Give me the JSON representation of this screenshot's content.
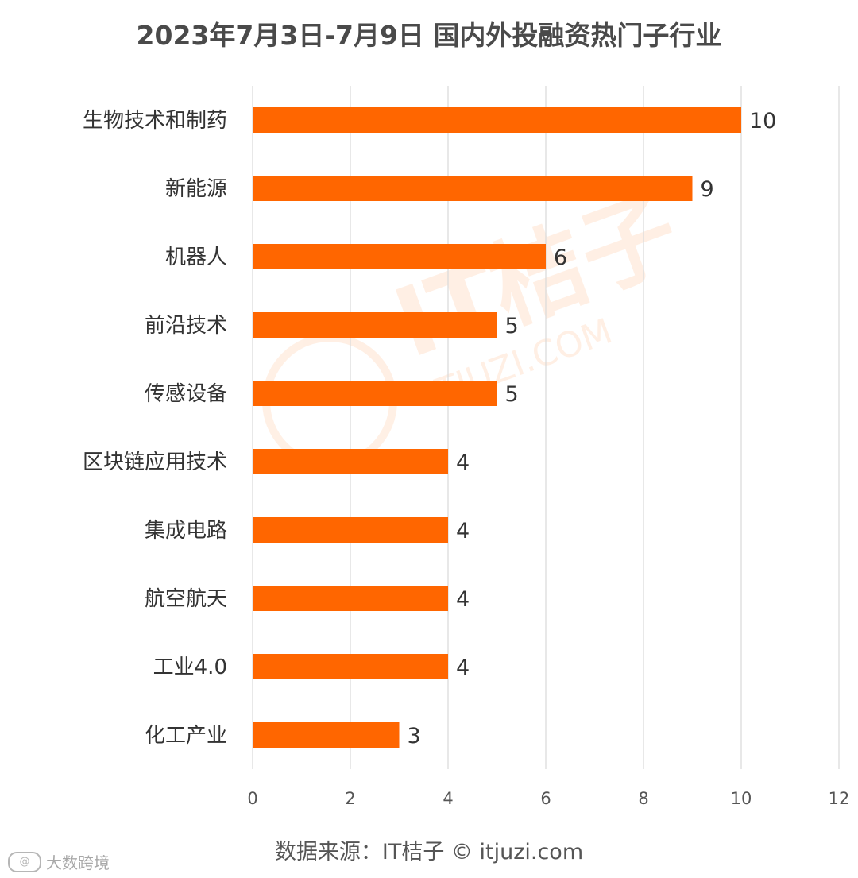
{
  "header": {
    "title": "2023年7月3日-7月9日 国内外投融资热门子行业"
  },
  "footer": {
    "source": "数据来源：IT桔子 © itjuzi.com",
    "credit": "大数跨境",
    "credit_icon": "weibo-like-logo-icon"
  },
  "watermark": {
    "text": "IT桔子",
    "sub": "ITJUZI.COM"
  },
  "colors": {
    "bar": "#ff6600",
    "grid": "#d9d9d9",
    "label": "#333333",
    "tick": "#555555"
  },
  "chart_data": {
    "type": "bar",
    "orientation": "horizontal",
    "title": "2023年7月3日-7月9日 国内外投融资热门子行业",
    "xlabel": "",
    "ylabel": "",
    "categories": [
      "生物技术和制药",
      "新能源",
      "机器人",
      "前沿技术",
      "传感设备",
      "区块链应用技术",
      "集成电路",
      "航空航天",
      "工业4.0",
      "化工产业"
    ],
    "values": [
      10,
      9,
      6,
      5,
      5,
      4,
      4,
      4,
      4,
      3
    ],
    "xlim": [
      0,
      12
    ],
    "xticks": [
      0,
      2,
      4,
      6,
      8,
      10,
      12
    ],
    "grid": "vertical",
    "data_labels": true
  }
}
